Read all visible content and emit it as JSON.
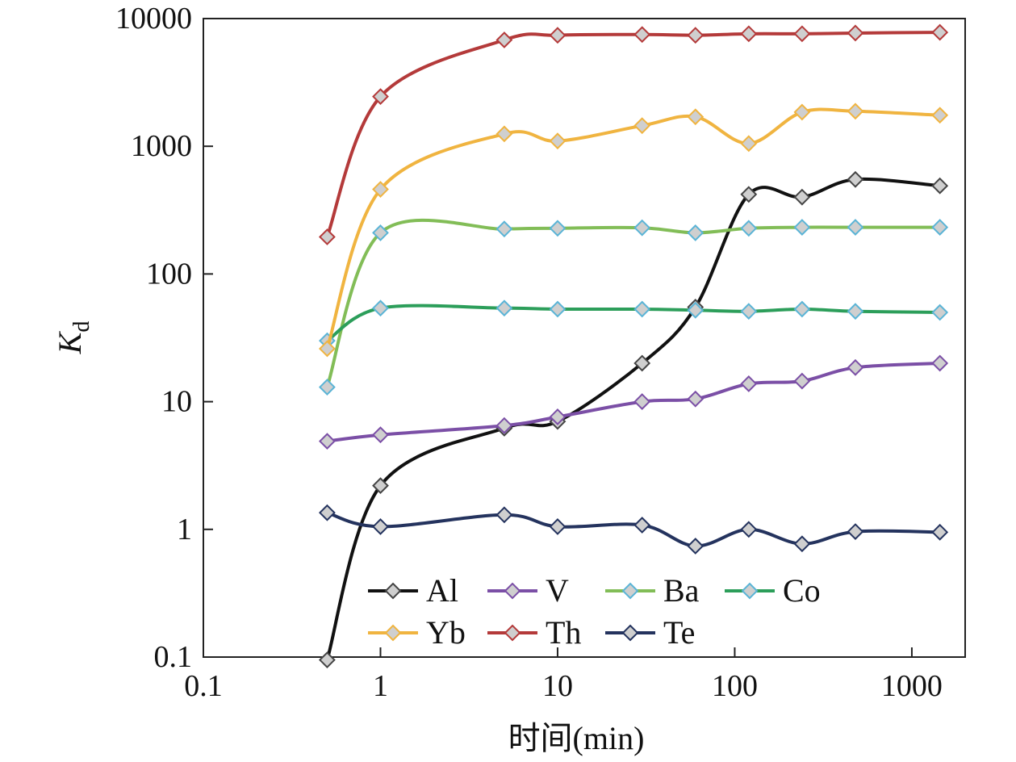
{
  "chart_data": {
    "type": "line",
    "title": "",
    "xlabel": "时间(min)",
    "ylabel_main": "K",
    "ylabel_sub": "d",
    "x_scale": "log",
    "y_scale": "log",
    "xlim": [
      0.1,
      2000
    ],
    "ylim": [
      0.1,
      10000
    ],
    "x_ticks": [
      0.1,
      1,
      10,
      100,
      1000
    ],
    "x_tick_labels": [
      "0.1",
      "1",
      "10",
      "100",
      "1000"
    ],
    "y_ticks": [
      0.1,
      1,
      10,
      100,
      1000,
      10000
    ],
    "y_tick_labels": [
      "0.1",
      "1",
      "10",
      "100",
      "1000",
      "10000"
    ],
    "grid": false,
    "legend_position": "bottom-center",
    "x": [
      0.5,
      1,
      5,
      10,
      30,
      60,
      120,
      240,
      480,
      1440
    ],
    "series": [
      {
        "name": "Al",
        "color": "#111111",
        "marker_stroke": "#444444",
        "values": [
          0.095,
          2.2,
          6.2,
          7.0,
          20,
          55,
          420,
          400,
          550,
          490
        ]
      },
      {
        "name": "V",
        "color": "#7b4fa6",
        "marker_stroke": "#7b4fa6",
        "values": [
          4.9,
          5.5,
          6.5,
          7.6,
          10,
          10.5,
          13.8,
          14.5,
          18.5,
          20
        ]
      },
      {
        "name": "Ba",
        "color": "#82bd57",
        "marker_stroke": "#5ab4d6",
        "values": [
          13,
          210,
          225,
          228,
          230,
          210,
          228,
          232,
          232,
          232
        ]
      },
      {
        "name": "Co",
        "color": "#2c9e5a",
        "marker_stroke": "#5ab4d6",
        "values": [
          30,
          54,
          54,
          53,
          53,
          52,
          51,
          53,
          51,
          50
        ]
      },
      {
        "name": "Yb",
        "color": "#f0b440",
        "marker_stroke": "#f0b440",
        "values": [
          26,
          460,
          1250,
          1100,
          1450,
          1700,
          1050,
          1850,
          1880,
          1750
        ]
      },
      {
        "name": "Th",
        "color": "#b43a3a",
        "marker_stroke": "#b43a3a",
        "values": [
          195,
          2450,
          6800,
          7400,
          7500,
          7400,
          7600,
          7600,
          7700,
          7800
        ]
      },
      {
        "name": "Te",
        "color": "#24335e",
        "marker_stroke": "#24335e",
        "values": [
          1.35,
          1.05,
          1.3,
          1.05,
          1.08,
          0.74,
          1.0,
          0.77,
          0.96,
          0.95
        ]
      }
    ]
  }
}
